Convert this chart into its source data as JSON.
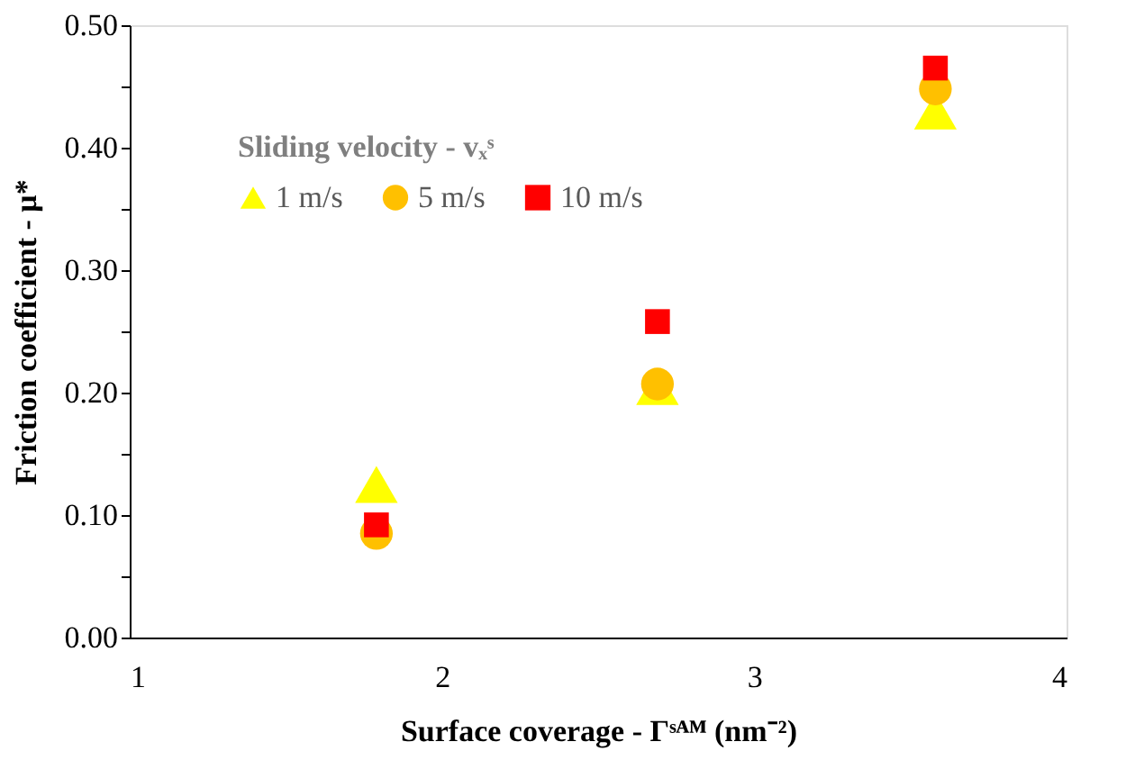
{
  "chart_data": {
    "type": "scatter",
    "xlabel": "Surface coverage - Γˢᴬᴹ (nm⁻²)",
    "ylabel": "Friction coefficient - μ*",
    "legend_title": "Sliding velocity - vₓˢ",
    "x": [
      1.79,
      2.69,
      3.58
    ],
    "series": [
      {
        "name": "1 m/s",
        "color": "#ffff00",
        "marker": "triangle",
        "values": [
          0.125,
          0.205,
          0.43
        ]
      },
      {
        "name": "5 m/s",
        "color": "#ffc000",
        "marker": "circle",
        "values": [
          0.085,
          0.207,
          0.448
        ]
      },
      {
        "name": "10 m/s",
        "color": "#ff0000",
        "marker": "square",
        "values": [
          0.092,
          0.258,
          0.465
        ]
      }
    ],
    "xlim": [
      1,
      4
    ],
    "xticks": [
      1,
      2,
      3,
      4
    ],
    "ylim": [
      0,
      0.5
    ],
    "yticks": [
      {
        "value": 0,
        "label": "0.00"
      },
      {
        "value": 0.05,
        "label": null
      },
      {
        "value": 0.1,
        "label": "0.10"
      },
      {
        "value": 0.15,
        "label": null
      },
      {
        "value": 0.2,
        "label": "0.20"
      },
      {
        "value": 0.25,
        "label": null
      },
      {
        "value": 0.3,
        "label": "0.30"
      },
      {
        "value": 0.35,
        "label": null
      },
      {
        "value": 0.4,
        "label": "0.40"
      },
      {
        "value": 0.45,
        "label": null
      },
      {
        "value": 0.5,
        "label": "0.50"
      }
    ],
    "grid": false,
    "legend": "top left"
  }
}
